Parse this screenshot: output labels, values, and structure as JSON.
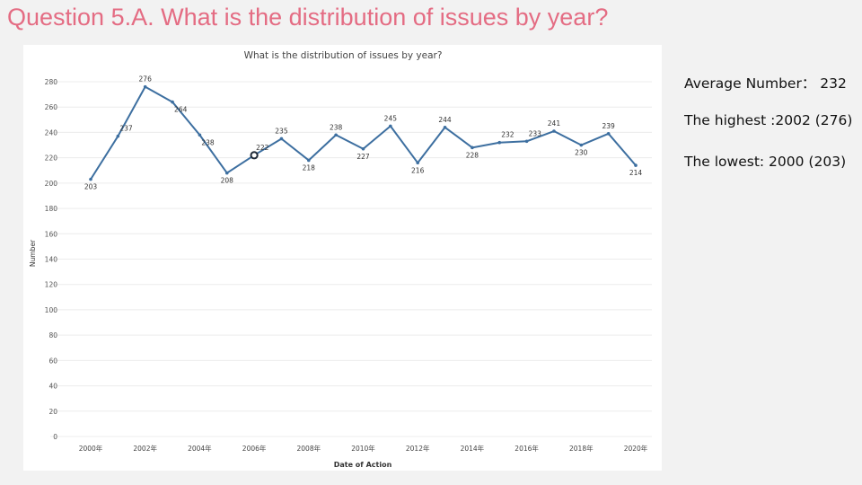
{
  "slide": {
    "title": "Question 5.A. What is the distribution of issues by year?"
  },
  "stats": {
    "average": "Average Number： 232",
    "highest": "The highest :2002 (276)",
    "lowest": "The lowest: 2000 (203)"
  },
  "colors": {
    "title": "#e46c83",
    "line": "#3d6fa0",
    "grid": "#ececec",
    "highlight_marker": "#1f2a38"
  },
  "chart_data": {
    "type": "line",
    "title": "What is the distribution of issues by year?",
    "xlabel": "Date of Action",
    "ylabel": "Number",
    "x": [
      2000,
      2001,
      2002,
      2003,
      2004,
      2005,
      2006,
      2007,
      2008,
      2009,
      2010,
      2011,
      2012,
      2013,
      2014,
      2015,
      2016,
      2017,
      2018,
      2019,
      2020
    ],
    "values": [
      203,
      237,
      276,
      264,
      238,
      208,
      222,
      235,
      218,
      238,
      227,
      245,
      216,
      244,
      228,
      232,
      233,
      241,
      230,
      239,
      214
    ],
    "ylim": [
      0,
      280
    ],
    "yticks": [
      0,
      20,
      40,
      60,
      80,
      100,
      120,
      140,
      160,
      180,
      200,
      220,
      240,
      260,
      280
    ],
    "xticks": [
      {
        "x": 2000,
        "label": "2000年"
      },
      {
        "x": 2002,
        "label": "2002年"
      },
      {
        "x": 2004,
        "label": "2004年"
      },
      {
        "x": 2006,
        "label": "2006年"
      },
      {
        "x": 2008,
        "label": "2008年"
      },
      {
        "x": 2010,
        "label": "2010年"
      },
      {
        "x": 2012,
        "label": "2012年"
      },
      {
        "x": 2014,
        "label": "2014年"
      },
      {
        "x": 2016,
        "label": "2016年"
      },
      {
        "x": 2018,
        "label": "2018年"
      },
      {
        "x": 2020,
        "label": "2020年"
      }
    ],
    "highlighted_x": 2006,
    "grid": true
  }
}
